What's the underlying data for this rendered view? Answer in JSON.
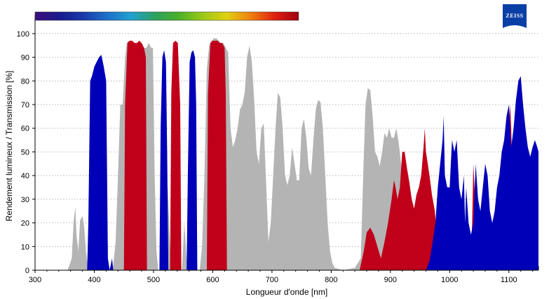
{
  "chart_data": {
    "type": "area",
    "xlabel": "Longueur d'onde [nm]",
    "ylabel": "Rendement lumineux / Transmission [%]",
    "xlim": [
      300,
      1150
    ],
    "ylim": [
      0,
      105
    ],
    "x_ticks": [
      300,
      400,
      500,
      600,
      700,
      800,
      900,
      1000,
      1100
    ],
    "y_ticks": [
      0,
      10,
      20,
      30,
      40,
      50,
      60,
      70,
      80,
      90,
      100
    ],
    "grid": "horizontal dotted",
    "colors": {
      "gray": "#b4b4b4",
      "red": "#c0001a",
      "blue": "#0000b8"
    },
    "series": [
      {
        "color": "gray",
        "points": [
          [
            355,
            0
          ],
          [
            362,
            5
          ],
          [
            365,
            20
          ],
          [
            368,
            27
          ],
          [
            370,
            15
          ],
          [
            373,
            8
          ],
          [
            376,
            21
          ],
          [
            380,
            23
          ],
          [
            383,
            18
          ],
          [
            386,
            8
          ],
          [
            390,
            0
          ],
          [
            428,
            0
          ],
          [
            432,
            2
          ],
          [
            436,
            12
          ],
          [
            440,
            40
          ],
          [
            444,
            70
          ],
          [
            448,
            70
          ],
          [
            452,
            90
          ],
          [
            455,
            96
          ],
          [
            458,
            97
          ],
          [
            461,
            97
          ],
          [
            464,
            96
          ],
          [
            468,
            96
          ],
          [
            472,
            95
          ],
          [
            476,
            95
          ],
          [
            480,
            95
          ],
          [
            484,
            94
          ],
          [
            488,
            94
          ],
          [
            492,
            96
          ],
          [
            496,
            94
          ],
          [
            499,
            94
          ],
          [
            502,
            40
          ],
          [
            505,
            8
          ],
          [
            508,
            0
          ],
          [
            512,
            0
          ],
          [
            516,
            5
          ],
          [
            520,
            20
          ],
          [
            524,
            35
          ],
          [
            528,
            10
          ],
          [
            532,
            0
          ],
          [
            548,
            0
          ],
          [
            552,
            20
          ],
          [
            556,
            5
          ],
          [
            560,
            0
          ],
          [
            578,
            0
          ],
          [
            582,
            10
          ],
          [
            586,
            40
          ],
          [
            590,
            85
          ],
          [
            594,
            95
          ],
          [
            598,
            97
          ],
          [
            602,
            98
          ],
          [
            606,
            98
          ],
          [
            610,
            97
          ],
          [
            614,
            96
          ],
          [
            618,
            96
          ],
          [
            622,
            94
          ],
          [
            626,
            92
          ],
          [
            630,
            60
          ],
          [
            634,
            52
          ],
          [
            638,
            55
          ],
          [
            642,
            60
          ],
          [
            646,
            68
          ],
          [
            650,
            70
          ],
          [
            654,
            75
          ],
          [
            658,
            90
          ],
          [
            662,
            95
          ],
          [
            666,
            88
          ],
          [
            670,
            72
          ],
          [
            674,
            50
          ],
          [
            678,
            45
          ],
          [
            682,
            60
          ],
          [
            686,
            62
          ],
          [
            690,
            38
          ],
          [
            694,
            12
          ],
          [
            698,
            20
          ],
          [
            702,
            40
          ],
          [
            706,
            60
          ],
          [
            710,
            75
          ],
          [
            714,
            73
          ],
          [
            718,
            60
          ],
          [
            722,
            40
          ],
          [
            726,
            36
          ],
          [
            730,
            40
          ],
          [
            734,
            52
          ],
          [
            738,
            45
          ],
          [
            742,
            38
          ],
          [
            746,
            38
          ],
          [
            750,
            60
          ],
          [
            754,
            64
          ],
          [
            758,
            56
          ],
          [
            762,
            43
          ],
          [
            766,
            40
          ],
          [
            770,
            55
          ],
          [
            774,
            68
          ],
          [
            778,
            72
          ],
          [
            782,
            71
          ],
          [
            786,
            60
          ],
          [
            790,
            40
          ],
          [
            794,
            20
          ],
          [
            798,
            8
          ],
          [
            802,
            3
          ],
          [
            806,
            1
          ],
          [
            820,
            0
          ],
          [
            840,
            1
          ],
          [
            850,
            5
          ],
          [
            854,
            40
          ],
          [
            858,
            70
          ],
          [
            862,
            77
          ],
          [
            866,
            76
          ],
          [
            870,
            65
          ],
          [
            874,
            50
          ],
          [
            878,
            48
          ],
          [
            882,
            44
          ],
          [
            886,
            50
          ],
          [
            890,
            58
          ],
          [
            894,
            56
          ],
          [
            898,
            60
          ],
          [
            902,
            56
          ],
          [
            906,
            56
          ],
          [
            910,
            60
          ],
          [
            914,
            54
          ],
          [
            918,
            45
          ],
          [
            922,
            30
          ],
          [
            926,
            20
          ],
          [
            930,
            10
          ],
          [
            936,
            2
          ],
          [
            940,
            0
          ]
        ]
      },
      {
        "color": "red",
        "points": [
          [
            450,
            0
          ],
          [
            452,
            70
          ],
          [
            456,
            96
          ],
          [
            460,
            97
          ],
          [
            464,
            97
          ],
          [
            468,
            96
          ],
          [
            472,
            96
          ],
          [
            476,
            97
          ],
          [
            480,
            96
          ],
          [
            484,
            94
          ],
          [
            487,
            90
          ],
          [
            489,
            0
          ],
          [
            528,
            0
          ],
          [
            530,
            75
          ],
          [
            533,
            96
          ],
          [
            537,
            97
          ],
          [
            541,
            96
          ],
          [
            545,
            70
          ],
          [
            547,
            0
          ],
          [
            590,
            0
          ],
          [
            592,
            75
          ],
          [
            596,
            96
          ],
          [
            600,
            97
          ],
          [
            604,
            97
          ],
          [
            608,
            97
          ],
          [
            612,
            96
          ],
          [
            616,
            96
          ],
          [
            620,
            94
          ],
          [
            622,
            75
          ],
          [
            624,
            0
          ],
          [
            848,
            0
          ],
          [
            855,
            8
          ],
          [
            860,
            16
          ],
          [
            866,
            18
          ],
          [
            872,
            15
          ],
          [
            878,
            10
          ],
          [
            884,
            5
          ],
          [
            890,
            12
          ],
          [
            896,
            20
          ],
          [
            902,
            30
          ],
          [
            906,
            38
          ],
          [
            908,
            36
          ],
          [
            912,
            30
          ],
          [
            916,
            35
          ],
          [
            920,
            50
          ],
          [
            924,
            50
          ],
          [
            928,
            43
          ],
          [
            932,
            37
          ],
          [
            936,
            30
          ],
          [
            940,
            26
          ],
          [
            944,
            32
          ],
          [
            948,
            35
          ],
          [
            952,
            40
          ],
          [
            956,
            52
          ],
          [
            958,
            60
          ],
          [
            960,
            50
          ],
          [
            966,
            40
          ],
          [
            970,
            32
          ],
          [
            975,
            25
          ],
          [
            980,
            10
          ],
          [
            982,
            0
          ],
          [
            1035,
            0
          ],
          [
            1038,
            20
          ],
          [
            1040,
            45
          ],
          [
            1043,
            30
          ],
          [
            1046,
            0
          ],
          [
            1095,
            0
          ],
          [
            1098,
            40
          ],
          [
            1100,
            60
          ],
          [
            1102,
            70
          ],
          [
            1104,
            60
          ],
          [
            1106,
            40
          ],
          [
            1108,
            0
          ]
        ]
      },
      {
        "color": "blue",
        "points": [
          [
            388,
            0
          ],
          [
            390,
            20
          ],
          [
            393,
            80
          ],
          [
            396,
            82
          ],
          [
            400,
            86
          ],
          [
            404,
            88
          ],
          [
            408,
            90
          ],
          [
            412,
            91
          ],
          [
            416,
            86
          ],
          [
            420,
            80
          ],
          [
            423,
            5
          ],
          [
            426,
            0
          ],
          [
            430,
            5
          ],
          [
            432,
            0
          ],
          [
            510,
            0
          ],
          [
            512,
            60
          ],
          [
            515,
            90
          ],
          [
            518,
            93
          ],
          [
            521,
            88
          ],
          [
            523,
            50
          ],
          [
            525,
            0
          ],
          [
            556,
            0
          ],
          [
            558,
            40
          ],
          [
            561,
            88
          ],
          [
            564,
            92
          ],
          [
            567,
            93
          ],
          [
            570,
            90
          ],
          [
            572,
            70
          ],
          [
            574,
            0
          ],
          [
            960,
            0
          ],
          [
            966,
            4
          ],
          [
            970,
            10
          ],
          [
            976,
            20
          ],
          [
            980,
            35
          ],
          [
            984,
            45
          ],
          [
            988,
            55
          ],
          [
            990,
            65
          ],
          [
            992,
            40
          ],
          [
            996,
            35
          ],
          [
            1000,
            35
          ],
          [
            1004,
            55
          ],
          [
            1008,
            50
          ],
          [
            1012,
            55
          ],
          [
            1016,
            35
          ],
          [
            1020,
            30
          ],
          [
            1024,
            40
          ],
          [
            1026,
            20
          ],
          [
            1028,
            35
          ],
          [
            1032,
            20
          ],
          [
            1036,
            15
          ],
          [
            1040,
            20
          ],
          [
            1044,
            45
          ],
          [
            1048,
            30
          ],
          [
            1052,
            25
          ],
          [
            1056,
            35
          ],
          [
            1060,
            45
          ],
          [
            1064,
            40
          ],
          [
            1068,
            25
          ],
          [
            1072,
            20
          ],
          [
            1076,
            25
          ],
          [
            1080,
            35
          ],
          [
            1084,
            40
          ],
          [
            1088,
            50
          ],
          [
            1092,
            55
          ],
          [
            1096,
            65
          ],
          [
            1100,
            70
          ],
          [
            1104,
            52
          ],
          [
            1108,
            60
          ],
          [
            1112,
            72
          ],
          [
            1116,
            80
          ],
          [
            1120,
            82
          ],
          [
            1124,
            70
          ],
          [
            1128,
            60
          ],
          [
            1132,
            52
          ],
          [
            1136,
            48
          ],
          [
            1140,
            52
          ],
          [
            1144,
            55
          ],
          [
            1148,
            52
          ],
          [
            1150,
            50
          ],
          [
            1150,
            0
          ]
        ]
      }
    ],
    "spectrum_bar": {
      "x_range": [
        300,
        745
      ],
      "stops": [
        "#3a0f7a",
        "#1a1a8c",
        "#1a3aa8",
        "#1c6fc8",
        "#22a0d0",
        "#2ca060",
        "#4cb028",
        "#9cc818",
        "#e0d010",
        "#f08010",
        "#e02010",
        "#a00010"
      ]
    }
  }
}
